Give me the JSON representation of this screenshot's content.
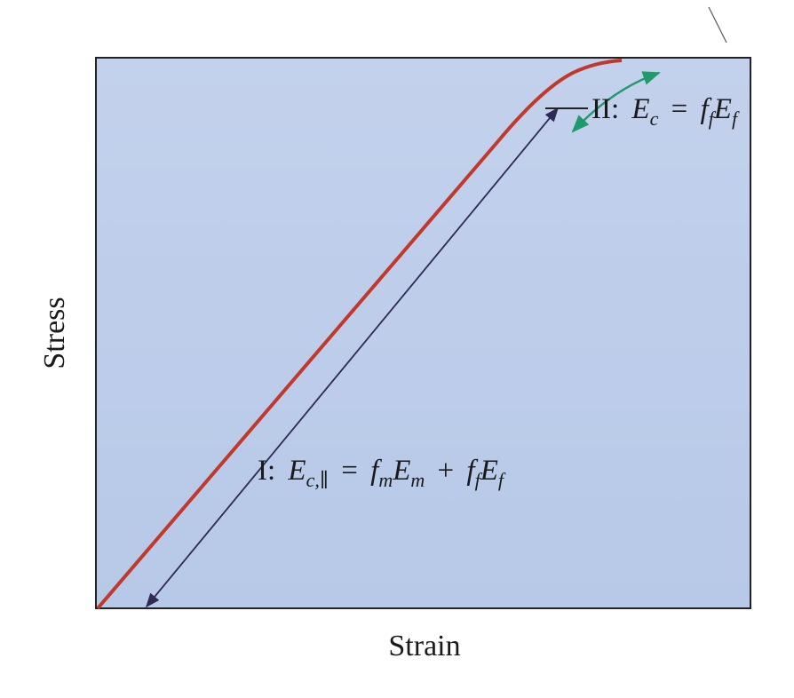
{
  "diagram": {
    "y_axis_label": "Stress",
    "x_axis_label": "Strain",
    "region_1": {
      "label": [
        "I:",
        "E",
        "c,∥",
        "=",
        "f",
        "m",
        "E",
        "m",
        "+",
        "f",
        "f",
        "E",
        "f"
      ]
    },
    "region_2": {
      "label": [
        "II:",
        "E",
        "c",
        "=",
        "f",
        "f",
        "E",
        "f"
      ]
    }
  }
}
